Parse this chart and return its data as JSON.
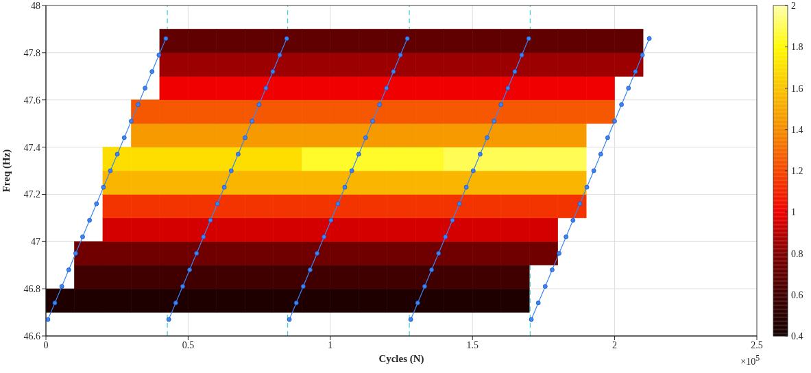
{
  "chart_data": {
    "type": "line",
    "xlabel": "Cycles (N)",
    "ylabel": "Freq (Hz)",
    "xlim": [
      0,
      2.5
    ],
    "xticks": [
      0,
      0.5,
      1,
      1.5,
      2,
      2.5
    ],
    "ylim": [
      46.6,
      48
    ],
    "yticks": [
      46.6,
      46.8,
      47,
      47.2,
      47.4,
      47.6,
      47.8,
      48
    ],
    "grid": true,
    "marker": "circle",
    "line_style": "solid",
    "clim": [
      0.4,
      2
    ],
    "cticks": [
      0.4,
      0.6,
      0.8,
      1,
      1.2,
      1.4,
      1.6,
      1.8,
      2
    ],
    "annotations": [
      "×10$^{5}$"
    ],
    "ref_lines": [
      {
        "axis": "x",
        "value": 0.427,
        "color": "#40d8e0",
        "line_style": "dashed"
      },
      {
        "axis": "x",
        "value": 0.85,
        "color": "#40d8e0",
        "line_style": "dashed"
      },
      {
        "axis": "x",
        "value": 1.278,
        "color": "#40d8e0",
        "line_style": "dashed"
      },
      {
        "axis": "x",
        "value": 1.703,
        "color": "#40d8e0",
        "line_style": "dashed"
      }
    ],
    "series": [
      {
        "type": "scatter",
        "marker": "square",
        "x": [
          0.05,
          0.15,
          0.25,
          0.35,
          0.45,
          0.55,
          0.65,
          0.75,
          0.85,
          0.95,
          1.05,
          1.15,
          1.25,
          1.35,
          1.45,
          1.55,
          1.65
        ],
        "values": [
          46.75,
          46.75,
          46.75,
          46.75,
          46.75,
          46.75,
          46.75,
          46.75,
          46.75,
          46.75,
          46.75,
          46.75,
          46.75,
          46.75,
          46.75,
          46.75,
          46.75
        ],
        "cvalues": [
          0.45,
          0.45,
          0.45,
          0.45,
          0.45,
          0.45,
          0.45,
          0.45,
          0.45,
          0.45,
          0.45,
          0.45,
          0.45,
          0.45,
          0.45,
          0.45,
          0.45
        ]
      },
      {
        "type": "scatter",
        "marker": "square",
        "x": [
          0.15,
          0.25,
          0.35,
          0.45,
          0.55,
          0.65,
          0.75,
          0.85,
          0.95,
          1.05,
          1.15,
          1.25,
          1.35,
          1.45,
          1.55,
          1.65
        ],
        "values": [
          46.85,
          46.85,
          46.85,
          46.85,
          46.85,
          46.85,
          46.85,
          46.85,
          46.85,
          46.85,
          46.85,
          46.85,
          46.85,
          46.85,
          46.85,
          46.85
        ],
        "cvalues": [
          0.6,
          0.6,
          0.6,
          0.6,
          0.6,
          0.6,
          0.6,
          0.6,
          0.6,
          0.6,
          0.6,
          0.6,
          0.6,
          0.6,
          0.6,
          0.6
        ]
      },
      {
        "type": "scatter",
        "marker": "square",
        "x": [
          0.15,
          0.25,
          0.35,
          0.45,
          0.55,
          0.65,
          0.75,
          0.85,
          0.95,
          1.05,
          1.15,
          1.25,
          1.35,
          1.45,
          1.55,
          1.65,
          1.75
        ],
        "values": [
          46.95,
          46.95,
          46.95,
          46.95,
          46.95,
          46.95,
          46.95,
          46.95,
          46.95,
          46.95,
          46.95,
          46.95,
          46.95,
          46.95,
          46.95,
          46.95,
          46.95
        ],
        "cvalues": [
          0.75,
          0.75,
          0.75,
          0.75,
          0.75,
          0.75,
          0.75,
          0.75,
          0.75,
          0.75,
          0.75,
          0.75,
          0.75,
          0.75,
          0.75,
          0.75,
          0.75
        ]
      },
      {
        "type": "scatter",
        "marker": "square",
        "x": [
          0.25,
          0.35,
          0.45,
          0.55,
          0.65,
          0.75,
          0.85,
          0.95,
          1.05,
          1.15,
          1.25,
          1.35,
          1.45,
          1.55,
          1.65,
          1.75
        ],
        "values": [
          47.05,
          47.05,
          47.05,
          47.05,
          47.05,
          47.05,
          47.05,
          47.05,
          47.05,
          47.05,
          47.05,
          47.05,
          47.05,
          47.05,
          47.05,
          47.05
        ],
        "cvalues": [
          0.95,
          0.95,
          0.95,
          0.95,
          0.95,
          0.95,
          0.95,
          0.95,
          0.95,
          0.95,
          0.95,
          0.95,
          0.95,
          0.95,
          0.95,
          0.95
        ]
      },
      {
        "type": "scatter",
        "marker": "square",
        "x": [
          0.25,
          0.35,
          0.45,
          0.55,
          0.65,
          0.75,
          0.85,
          0.95,
          1.05,
          1.15,
          1.25,
          1.35,
          1.45,
          1.55,
          1.65,
          1.75,
          1.85
        ],
        "values": [
          47.15,
          47.15,
          47.15,
          47.15,
          47.15,
          47.15,
          47.15,
          47.15,
          47.15,
          47.15,
          47.15,
          47.15,
          47.15,
          47.15,
          47.15,
          47.15,
          47.15
        ],
        "cvalues": [
          1.15,
          1.15,
          1.15,
          1.15,
          1.15,
          1.15,
          1.15,
          1.15,
          1.15,
          1.15,
          1.15,
          1.15,
          1.15,
          1.15,
          1.15,
          1.15,
          1.15
        ]
      },
      {
        "type": "scatter",
        "marker": "square",
        "x": [
          0.25,
          0.35,
          0.45,
          0.55,
          0.65,
          0.75,
          0.85,
          0.95,
          1.05,
          1.15,
          1.25,
          1.35,
          1.45,
          1.55,
          1.65,
          1.75,
          1.85
        ],
        "values": [
          47.25,
          47.25,
          47.25,
          47.25,
          47.25,
          47.25,
          47.25,
          47.25,
          47.25,
          47.25,
          47.25,
          47.25,
          47.25,
          47.25,
          47.25,
          47.25,
          47.25
        ],
        "cvalues": [
          1.55,
          1.55,
          1.55,
          1.55,
          1.55,
          1.55,
          1.55,
          1.55,
          1.55,
          1.55,
          1.55,
          1.55,
          1.55,
          1.55,
          1.55,
          1.55,
          1.55
        ]
      },
      {
        "type": "scatter",
        "marker": "square",
        "x": [
          0.25,
          0.35,
          0.45,
          0.55,
          0.65,
          0.75,
          0.85
        ],
        "values": [
          47.35,
          47.35,
          47.35,
          47.35,
          47.35,
          47.35,
          47.35
        ],
        "cvalues": [
          1.7,
          1.7,
          1.7,
          1.7,
          1.7,
          1.7,
          1.7
        ]
      },
      {
        "type": "scatter",
        "marker": "square",
        "x": [
          0.95,
          1.05,
          1.15,
          1.25,
          1.35
        ],
        "values": [
          47.35,
          47.35,
          47.35,
          47.35,
          47.35
        ],
        "cvalues": [
          1.85,
          1.85,
          1.85,
          1.85,
          1.85
        ]
      },
      {
        "type": "scatter",
        "marker": "square",
        "x": [
          1.45,
          1.55,
          1.65,
          1.75,
          1.85
        ],
        "values": [
          47.35,
          47.35,
          47.35,
          47.35,
          47.35
        ],
        "cvalues": [
          1.9,
          1.9,
          1.9,
          1.9,
          1.9
        ]
      },
      {
        "type": "scatter",
        "marker": "square",
        "x": [
          0.35,
          0.45,
          0.55,
          0.65,
          0.75,
          0.85,
          0.95,
          1.05,
          1.15,
          1.25,
          1.35,
          1.45,
          1.55,
          1.65,
          1.75,
          1.85
        ],
        "values": [
          47.45,
          47.45,
          47.45,
          47.45,
          47.45,
          47.45,
          47.45,
          47.45,
          47.45,
          47.45,
          47.45,
          47.45,
          47.45,
          47.45,
          47.45,
          47.45
        ],
        "cvalues": [
          1.45,
          1.45,
          1.45,
          1.45,
          1.45,
          1.45,
          1.45,
          1.45,
          1.45,
          1.45,
          1.45,
          1.45,
          1.45,
          1.45,
          1.45,
          1.45
        ]
      },
      {
        "type": "scatter",
        "marker": "square",
        "x": [
          0.35,
          0.45,
          0.55,
          0.65,
          0.75,
          0.85,
          0.95,
          1.05,
          1.15,
          1.25,
          1.35,
          1.45,
          1.55,
          1.65,
          1.75,
          1.85,
          1.95
        ],
        "values": [
          47.55,
          47.55,
          47.55,
          47.55,
          47.55,
          47.55,
          47.55,
          47.55,
          47.55,
          47.55,
          47.55,
          47.55,
          47.55,
          47.55,
          47.55,
          47.55,
          47.55
        ],
        "cvalues": [
          1.25,
          1.25,
          1.25,
          1.25,
          1.25,
          1.25,
          1.25,
          1.25,
          1.25,
          1.25,
          1.25,
          1.25,
          1.25,
          1.25,
          1.25,
          1.25,
          1.25
        ]
      },
      {
        "type": "scatter",
        "marker": "square",
        "x": [
          0.45,
          0.55,
          0.65,
          0.75,
          0.85,
          0.95,
          1.05,
          1.15,
          1.25,
          1.35,
          1.45,
          1.55,
          1.65,
          1.75,
          1.85,
          1.95
        ],
        "values": [
          47.65,
          47.65,
          47.65,
          47.65,
          47.65,
          47.65,
          47.65,
          47.65,
          47.65,
          47.65,
          47.65,
          47.65,
          47.65,
          47.65,
          47.65,
          47.65
        ],
        "cvalues": [
          1,
          1,
          1,
          1,
          1,
          1,
          1,
          1,
          1,
          1,
          1,
          1,
          1,
          1,
          1,
          1
        ]
      },
      {
        "type": "scatter",
        "marker": "square",
        "x": [
          0.45,
          0.55,
          0.65,
          0.75,
          0.85,
          0.95,
          1.05,
          1.15,
          1.25,
          1.35,
          1.45,
          1.55,
          1.65,
          1.75,
          1.85,
          1.95,
          2.05
        ],
        "values": [
          47.75,
          47.75,
          47.75,
          47.75,
          47.75,
          47.75,
          47.75,
          47.75,
          47.75,
          47.75,
          47.75,
          47.75,
          47.75,
          47.75,
          47.75,
          47.75,
          47.75
        ],
        "cvalues": [
          0.85,
          0.85,
          0.85,
          0.85,
          0.85,
          0.85,
          0.85,
          0.85,
          0.85,
          0.85,
          0.85,
          0.85,
          0.85,
          0.85,
          0.85,
          0.85,
          0.85
        ]
      },
      {
        "type": "scatter",
        "marker": "square",
        "x": [
          0.45,
          0.55,
          0.65,
          0.75,
          0.85,
          0.95,
          1.05,
          1.15,
          1.25,
          1.35,
          1.45,
          1.55,
          1.65,
          1.75,
          1.85,
          1.95,
          2.05
        ],
        "values": [
          47.85,
          47.85,
          47.85,
          47.85,
          47.85,
          47.85,
          47.85,
          47.85,
          47.85,
          47.85,
          47.85,
          47.85,
          47.85,
          47.85,
          47.85,
          47.85,
          47.85
        ],
        "cvalues": [
          0.7,
          0.7,
          0.7,
          0.7,
          0.7,
          0.7,
          0.7,
          0.7,
          0.7,
          0.7,
          0.7,
          0.7,
          0.7,
          0.7,
          0.7,
          0.7,
          0.7
        ]
      },
      {
        "color": "#3b86f5",
        "x": [
          0.007,
          0.0314,
          0.0558,
          0.0802,
          0.1046,
          0.129,
          0.1534,
          0.1778,
          0.2022,
          0.2266,
          0.251,
          0.2754,
          0.2998,
          0.3242,
          0.3486,
          0.373,
          0.3974,
          0.4218
        ],
        "values": [
          46.67,
          46.74,
          46.81,
          46.88,
          46.95,
          47.02,
          47.09,
          47.16,
          47.23,
          47.3,
          47.37,
          47.44,
          47.51,
          47.58,
          47.65,
          47.72,
          47.79,
          47.86
        ]
      },
      {
        "color": "#3b86f5",
        "x": [
          0.432,
          0.4564,
          0.4808,
          0.5052,
          0.5296,
          0.554,
          0.5784,
          0.6028,
          0.6272,
          0.6516,
          0.676,
          0.7004,
          0.7248,
          0.7492,
          0.7736,
          0.798,
          0.8224,
          0.8468
        ],
        "values": [
          46.67,
          46.74,
          46.81,
          46.88,
          46.95,
          47.02,
          47.09,
          47.16,
          47.23,
          47.3,
          47.37,
          47.44,
          47.51,
          47.58,
          47.65,
          47.72,
          47.79,
          47.86
        ]
      },
      {
        "color": "#3b86f5",
        "x": [
          0.856,
          0.8804,
          0.9048,
          0.9292,
          0.9536,
          0.978,
          1.0024,
          1.0268,
          1.0512,
          1.0756,
          1.1,
          1.1244,
          1.1488,
          1.1732,
          1.1976,
          1.222,
          1.2464,
          1.2708
        ],
        "values": [
          46.67,
          46.74,
          46.81,
          46.88,
          46.95,
          47.02,
          47.09,
          47.16,
          47.23,
          47.3,
          47.37,
          47.44,
          47.51,
          47.58,
          47.65,
          47.72,
          47.79,
          47.86
        ]
      },
      {
        "color": "#3b86f5",
        "x": [
          1.283,
          1.3074,
          1.3318,
          1.3562,
          1.3806,
          1.405,
          1.4294,
          1.4538,
          1.4782,
          1.5026,
          1.527,
          1.5514,
          1.5758,
          1.6002,
          1.6246,
          1.649,
          1.6734,
          1.6978
        ],
        "values": [
          46.67,
          46.74,
          46.81,
          46.88,
          46.95,
          47.02,
          47.09,
          47.16,
          47.23,
          47.3,
          47.37,
          47.44,
          47.51,
          47.58,
          47.65,
          47.72,
          47.79,
          47.86
        ]
      },
      {
        "color": "#3b86f5",
        "x": [
          1.707,
          1.7314,
          1.7558,
          1.7802,
          1.8046,
          1.829,
          1.8534,
          1.8778,
          1.9022,
          1.9266,
          1.951,
          1.9754,
          1.9998,
          2.0242,
          2.0486,
          2.073,
          2.0974,
          2.1218
        ],
        "values": [
          46.67,
          46.74,
          46.81,
          46.88,
          46.95,
          47.02,
          47.09,
          47.16,
          47.23,
          47.3,
          47.37,
          47.44,
          47.51,
          47.58,
          47.65,
          47.72,
          47.79,
          47.86
        ]
      }
    ]
  }
}
